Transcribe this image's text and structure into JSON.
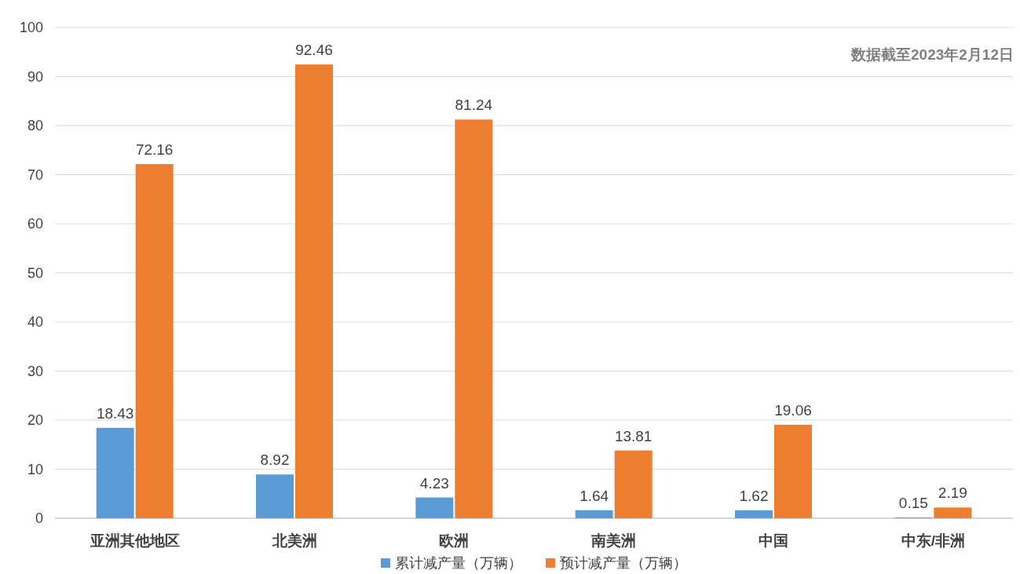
{
  "chart_data": {
    "type": "bar",
    "categories": [
      "亚洲其他地区",
      "北美洲",
      "欧洲",
      "南美洲",
      "中国",
      "中东/非洲"
    ],
    "series": [
      {
        "name": "累计减产量（万辆）",
        "color": "#5b9bd5",
        "values": [
          18.43,
          8.92,
          4.23,
          1.64,
          1.62,
          0.15
        ]
      },
      {
        "name": "预计减产量（万辆）",
        "color": "#ed7d31",
        "values": [
          72.16,
          92.46,
          81.24,
          13.81,
          19.06,
          2.19
        ]
      }
    ],
    "ylim": [
      0,
      100
    ],
    "yticks": [
      0,
      10,
      20,
      30,
      40,
      50,
      60,
      70,
      80,
      90,
      100
    ],
    "grid": "y",
    "legend": "bottom",
    "data_labels": true,
    "annotations": [
      "数据截至2023年2月12日"
    ]
  }
}
